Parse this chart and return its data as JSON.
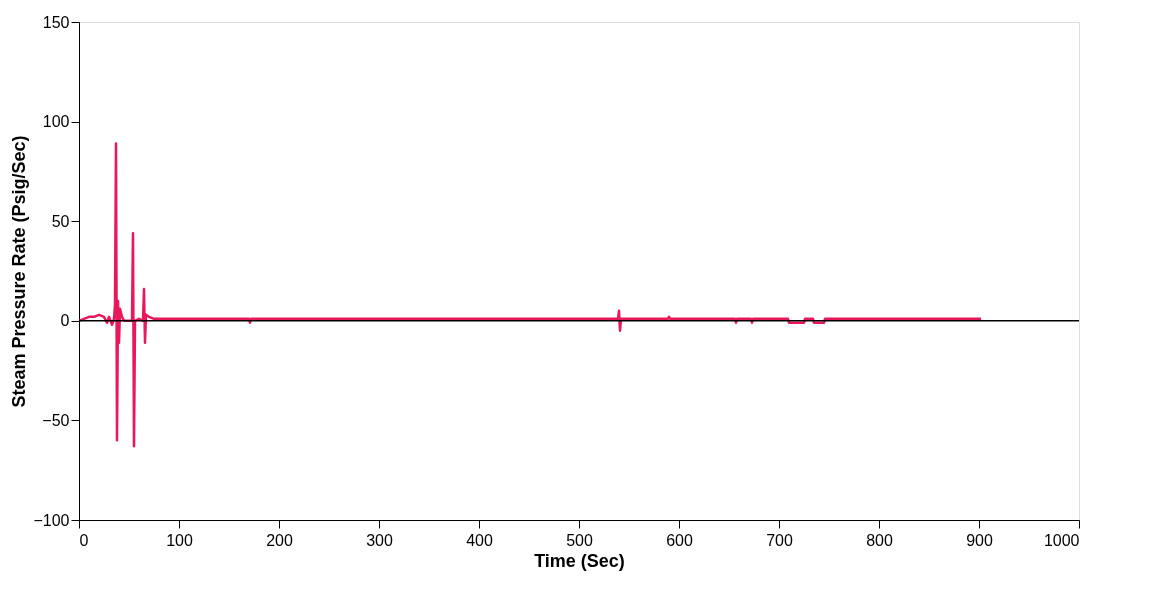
{
  "chart_data": {
    "type": "line",
    "xlabel": "Time (Sec)",
    "ylabel": "Steam Pressure Rate (Psig/Sec)",
    "x": [
      0,
      5,
      10,
      15,
      20,
      25,
      28,
      30,
      33,
      35,
      36,
      37,
      38,
      39,
      40,
      41,
      43,
      45,
      50,
      53,
      54,
      55,
      56,
      60,
      64,
      65,
      66,
      67,
      70,
      75,
      80,
      170,
      171,
      172,
      539,
      540,
      541,
      542,
      589,
      590,
      591,
      656,
      657,
      658,
      672,
      673,
      674,
      709,
      710,
      725,
      726,
      734,
      735,
      745,
      746,
      902
    ],
    "series": [
      {
        "color": "#e8185a",
        "values": [
          0,
          1,
          2,
          2,
          3,
          2,
          -1,
          2,
          -2,
          1,
          8,
          89,
          -60,
          10,
          -11,
          6,
          2,
          0,
          0,
          0,
          44,
          -63,
          0,
          1,
          0,
          16,
          -11,
          3,
          2,
          1,
          1,
          1,
          -1,
          1,
          1,
          5,
          -5,
          1,
          1,
          2,
          1,
          1,
          -1,
          1,
          1,
          -1,
          1,
          1,
          -1,
          -1,
          1,
          1,
          -1,
          -1,
          1,
          1
        ]
      }
    ],
    "xlim": [
      0,
      1000
    ],
    "xticks": [
      0,
      100,
      200,
      300,
      400,
      500,
      600,
      700,
      800,
      900,
      1000
    ],
    "ylim": [
      -100,
      150
    ],
    "yticks": [
      -100,
      -50,
      0,
      50,
      100,
      150
    ],
    "ref_lines": [
      {
        "axis": "y",
        "value": 0,
        "color": "#000000"
      }
    ],
    "grid": false,
    "legend": false,
    "marker": "none",
    "line_style": "solid"
  }
}
